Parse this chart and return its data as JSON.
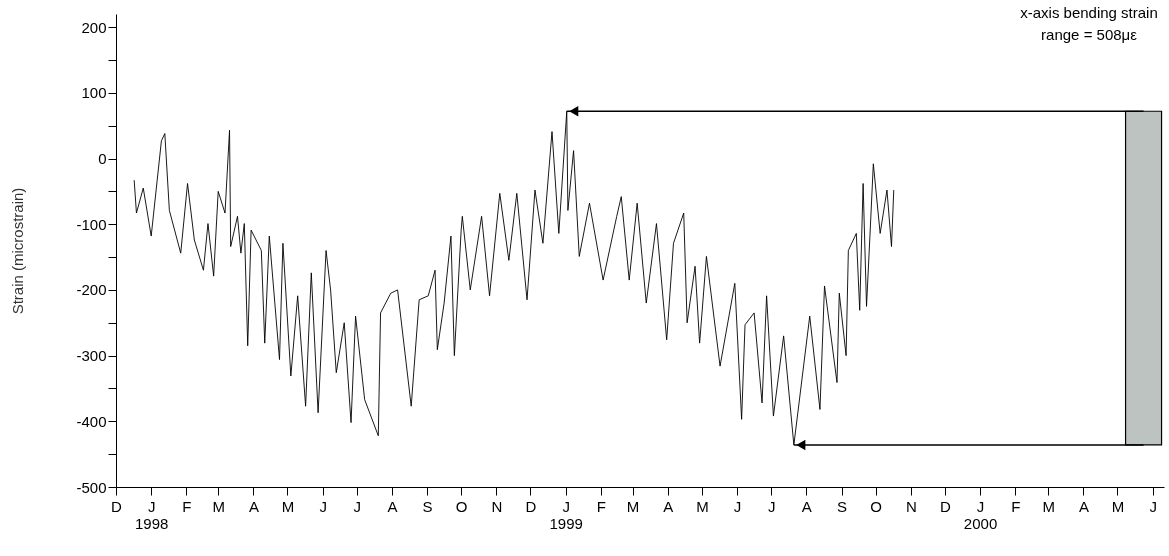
{
  "chart_data": {
    "type": "line",
    "ylabel": "Strain (microstrain)",
    "annotations": [
      "x-axis bending strain\nrange = 508με"
    ],
    "xlim": [
      "1997-12-01",
      "2000-06-11"
    ],
    "xticks": [
      {
        "value": "1997-12-01",
        "label": "D"
      },
      {
        "value": "1998-01-01",
        "label": "J\n1998"
      },
      {
        "value": "1998-02-01",
        "label": "F"
      },
      {
        "value": "1998-03-01",
        "label": "M"
      },
      {
        "value": "1998-04-01",
        "label": "A"
      },
      {
        "value": "1998-05-01",
        "label": "M"
      },
      {
        "value": "1998-06-01",
        "label": "J"
      },
      {
        "value": "1998-07-01",
        "label": "J"
      },
      {
        "value": "1998-08-01",
        "label": "A"
      },
      {
        "value": "1998-09-01",
        "label": "S"
      },
      {
        "value": "1998-10-01",
        "label": "O"
      },
      {
        "value": "1998-11-01",
        "label": "N"
      },
      {
        "value": "1998-12-01",
        "label": "D"
      },
      {
        "value": "1999-01-01",
        "label": "J\n1999"
      },
      {
        "value": "1999-02-01",
        "label": "F"
      },
      {
        "value": "1999-03-01",
        "label": "M"
      },
      {
        "value": "1999-04-01",
        "label": "A"
      },
      {
        "value": "1999-05-01",
        "label": "M"
      },
      {
        "value": "1999-06-01",
        "label": "J"
      },
      {
        "value": "1999-07-01",
        "label": "J"
      },
      {
        "value": "1999-08-01",
        "label": "A"
      },
      {
        "value": "1999-09-01",
        "label": "S"
      },
      {
        "value": "1999-10-01",
        "label": "O"
      },
      {
        "value": "1999-11-01",
        "label": "N"
      },
      {
        "value": "1999-12-01",
        "label": "D"
      },
      {
        "value": "2000-01-01",
        "label": "J\n2000"
      },
      {
        "value": "2000-02-01",
        "label": "F"
      },
      {
        "value": "2000-03-01",
        "label": "M"
      },
      {
        "value": "2000-04-01",
        "label": "A"
      },
      {
        "value": "2000-05-01",
        "label": "M"
      },
      {
        "value": "2000-06-01",
        "label": "J"
      }
    ],
    "ylim": [
      -500,
      220
    ],
    "yticks": [
      -500,
      {
        "value": -450,
        "label": null
      },
      -400,
      {
        "value": -350,
        "label": null
      },
      -300,
      {
        "value": -250,
        "label": null
      },
      -200,
      {
        "value": -150,
        "label": null
      },
      -100,
      {
        "value": -50,
        "label": null
      },
      0,
      {
        "value": 50,
        "label": null
      },
      100,
      {
        "value": 150,
        "label": null
      },
      200
    ],
    "grid": false,
    "series": [
      {
        "color": "#000000",
        "x": [
          "1997-12-17",
          "1997-12-19",
          "1997-12-25",
          "1998-01-01",
          "1998-01-10",
          "1998-01-13",
          "1998-01-17",
          "1998-01-27",
          "1998-02-02",
          "1998-02-08",
          "1998-02-16",
          "1998-02-20",
          "1998-02-25",
          "1998-03-01",
          "1998-03-07",
          "1998-03-11",
          "1998-03-12",
          "1998-03-18",
          "1998-03-21",
          "1998-03-24",
          "1998-03-27",
          "1998-03-30",
          "1998-04-08",
          "1998-04-11",
          "1998-04-15",
          "1998-04-24",
          "1998-04-27",
          "1998-05-04",
          "1998-05-10",
          "1998-05-17",
          "1998-05-22",
          "1998-05-28",
          "1998-06-04",
          "1998-06-08",
          "1998-06-13",
          "1998-06-20",
          "1998-06-26",
          "1998-06-30",
          "1998-07-08",
          "1998-07-20",
          "1998-07-22",
          "1998-07-31",
          "1998-08-06",
          "1998-08-18",
          "1998-08-25",
          "1998-09-02",
          "1998-09-08",
          "1998-09-10",
          "1998-09-16",
          "1998-09-22",
          "1998-09-25",
          "1998-10-01",
          "1998-10-02",
          "1998-10-09",
          "1998-10-19",
          "1998-10-26",
          "1998-11-04",
          "1998-11-12",
          "1998-11-19",
          "1998-11-28",
          "1998-12-05",
          "1998-12-12",
          "1998-12-20",
          "1998-12-26",
          "1999-01-02",
          "1999-01-03",
          "1999-01-08",
          "1999-01-13",
          "1999-01-22",
          "1999-02-03",
          "1999-02-15",
          "1999-02-19",
          "1999-02-26",
          "1999-03-05",
          "1999-03-13",
          "1999-03-22",
          "1999-03-31",
          "1999-04-06",
          "1999-04-15",
          "1999-04-18",
          "1999-04-25",
          "1999-04-29",
          "1999-05-05",
          "1999-05-17",
          "1999-05-30",
          "1999-06-05",
          "1999-06-08",
          "1999-06-16",
          "1999-06-23",
          "1999-06-27",
          "1999-07-03",
          "1999-07-12",
          "1999-07-21",
          "1999-08-04",
          "1999-08-13",
          "1999-08-17",
          "1999-08-28",
          "1999-08-30",
          "1999-09-05",
          "1999-09-07",
          "1999-09-14",
          "1999-09-17",
          "1999-09-20",
          "1999-09-23",
          "1999-09-26",
          "1999-09-29",
          "1999-10-05",
          "1999-10-11",
          "1999-10-15",
          "1999-10-17"
        ],
        "values": [
          -33,
          -83,
          -45,
          -118,
          27,
          38,
          -79,
          -144,
          -38,
          -124,
          -170,
          -99,
          -179,
          -50,
          -83,
          43,
          -134,
          -88,
          -144,
          -99,
          -285,
          -109,
          -140,
          -281,
          -118,
          -306,
          -129,
          -331,
          -209,
          -377,
          -174,
          -387,
          -140,
          -200,
          -326,
          -250,
          -402,
          -240,
          -367,
          -422,
          -235,
          -205,
          -200,
          -377,
          -215,
          -209,
          -170,
          -291,
          -220,
          -118,
          -300,
          -109,
          -88,
          -200,
          -88,
          -209,
          -53,
          -155,
          -53,
          -215,
          -48,
          -129,
          41,
          -114,
          72,
          -79,
          12,
          -149,
          -68,
          -185,
          -88,
          -58,
          -185,
          -68,
          -220,
          -99,
          -276,
          -129,
          -83,
          -250,
          -164,
          -281,
          -149,
          -316,
          -190,
          -397,
          -253,
          -235,
          -372,
          -209,
          -392,
          -270,
          -436,
          -240,
          -382,
          -194,
          -341,
          -205,
          -300,
          -140,
          -114,
          -231,
          -38,
          -225,
          -118,
          -8,
          -114,
          -48,
          -134,
          -48
        ]
      },
      {
        "type": "bar",
        "color": "#bcc3c1",
        "x": [
          "2000-05-24"
        ],
        "base": [
          -436
        ],
        "values": [
          508
        ]
      }
    ]
  }
}
